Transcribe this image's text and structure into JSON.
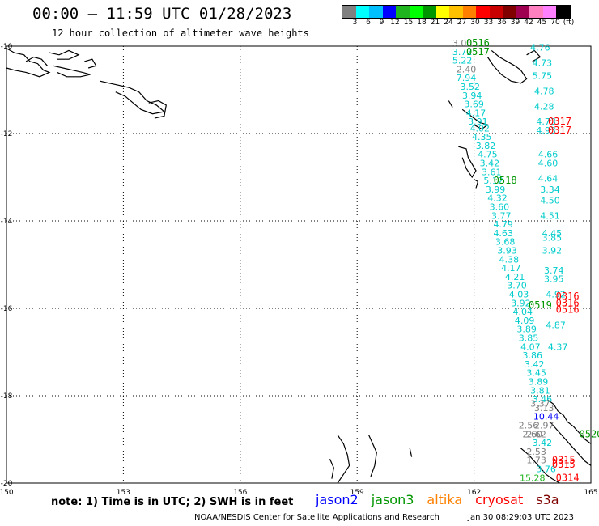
{
  "title": "00:00 – 11:59 UTC 01/28/2023",
  "subtitle": "12 hour collection of altimeter wave heights",
  "colorbar": {
    "colors": [
      "#808080",
      "#00ffff",
      "#00bfff",
      "#0000ff",
      "#1fb51f",
      "#00ff00",
      "#009600",
      "#ffff00",
      "#ffc000",
      "#ff8000",
      "#ff0000",
      "#c80000",
      "#800000",
      "#a00050",
      "#ff80c0",
      "#ff80ff",
      "#000000"
    ],
    "labels": [
      "3",
      "6",
      "9",
      "12",
      "15",
      "18",
      "21",
      "24",
      "27",
      "30",
      "33",
      "36",
      "39",
      "42",
      "45",
      "70",
      "(ft)"
    ]
  },
  "axes": {
    "lon_ticks": [
      "150",
      "153",
      "156",
      "159",
      "162",
      "165"
    ],
    "lat_ticks": [
      "-10",
      "-12",
      "-14",
      "-16",
      "-18",
      "-20"
    ]
  },
  "map_data": {
    "lon_range": [
      150,
      165
    ],
    "lat_range": [
      -20,
      -10
    ],
    "pass_labels": [
      {
        "text": "0516",
        "lon": 162.1,
        "lat": -10.0,
        "color": "#009600"
      },
      {
        "text": "0517",
        "lon": 162.1,
        "lat": -10.2,
        "color": "#009600"
      },
      {
        "text": "0317",
        "lon": 164.2,
        "lat": -11.8,
        "color": "#ff0000"
      },
      {
        "text": "0317",
        "lon": 164.2,
        "lat": -12.0,
        "color": "#ff0000"
      },
      {
        "text": "0518",
        "lon": 162.8,
        "lat": -13.15,
        "color": "#009600"
      },
      {
        "text": "0316",
        "lon": 164.4,
        "lat": -15.8,
        "color": "#ff0000"
      },
      {
        "text": "0316",
        "lon": 164.4,
        "lat": -15.95,
        "color": "#ff0000"
      },
      {
        "text": "0516",
        "lon": 164.4,
        "lat": -16.1,
        "color": "#ff0000"
      },
      {
        "text": "0519",
        "lon": 163.7,
        "lat": -16.0,
        "color": "#009600"
      },
      {
        "text": "0520",
        "lon": 165.0,
        "lat": -18.95,
        "color": "#009600"
      },
      {
        "text": "0315",
        "lon": 164.3,
        "lat": -19.55,
        "color": "#ff0000"
      },
      {
        "text": "0315",
        "lon": 164.3,
        "lat": -19.65,
        "color": "#ff0000"
      },
      {
        "text": "0314",
        "lon": 164.4,
        "lat": -19.95,
        "color": "#ff0000"
      }
    ],
    "wave_heights": [
      {
        "v": "3.00",
        "lon": 161.7,
        "lat": -10.0,
        "c": "#808080"
      },
      {
        "v": "3.72",
        "lon": 161.7,
        "lat": -10.2,
        "c": "#00cccc"
      },
      {
        "v": "5.22",
        "lon": 161.7,
        "lat": -10.4,
        "c": "#00cccc"
      },
      {
        "v": "2.40",
        "lon": 161.8,
        "lat": -10.6,
        "c": "#808080"
      },
      {
        "v": "7.94",
        "lon": 161.8,
        "lat": -10.8,
        "c": "#00cccc"
      },
      {
        "v": "3.52",
        "lon": 161.9,
        "lat": -11.0,
        "c": "#00cccc"
      },
      {
        "v": "3.94",
        "lon": 161.95,
        "lat": -11.2,
        "c": "#00cccc"
      },
      {
        "v": "3.69",
        "lon": 162.0,
        "lat": -11.4,
        "c": "#00cccc"
      },
      {
        "v": "4.17",
        "lon": 162.05,
        "lat": -11.6,
        "c": "#00cccc"
      },
      {
        "v": "3.91",
        "lon": 162.1,
        "lat": -11.8,
        "c": "#00cccc"
      },
      {
        "v": "4.02",
        "lon": 162.15,
        "lat": -11.95,
        "c": "#00cccc"
      },
      {
        "v": "4.35",
        "lon": 162.2,
        "lat": -12.15,
        "c": "#00cccc"
      },
      {
        "v": "3.82",
        "lon": 162.3,
        "lat": -12.35,
        "c": "#00cccc"
      },
      {
        "v": "4.75",
        "lon": 162.35,
        "lat": -12.55,
        "c": "#00cccc"
      },
      {
        "v": "3.42",
        "lon": 162.4,
        "lat": -12.75,
        "c": "#00cccc"
      },
      {
        "v": "3.61",
        "lon": 162.45,
        "lat": -12.95,
        "c": "#00cccc"
      },
      {
        "v": "5.12",
        "lon": 162.5,
        "lat": -13.15,
        "c": "#00cccc"
      },
      {
        "v": "3.99",
        "lon": 162.55,
        "lat": -13.35,
        "c": "#00cccc"
      },
      {
        "v": "4.32",
        "lon": 162.6,
        "lat": -13.55,
        "c": "#00cccc"
      },
      {
        "v": "3.60",
        "lon": 162.65,
        "lat": -13.75,
        "c": "#00cccc"
      },
      {
        "v": "3.77",
        "lon": 162.7,
        "lat": -13.95,
        "c": "#00cccc"
      },
      {
        "v": "4.79",
        "lon": 162.75,
        "lat": -14.15,
        "c": "#00cccc"
      },
      {
        "v": "4.63",
        "lon": 162.75,
        "lat": -14.35,
        "c": "#00cccc"
      },
      {
        "v": "3.68",
        "lon": 162.8,
        "lat": -14.55,
        "c": "#00cccc"
      },
      {
        "v": "3.93",
        "lon": 162.85,
        "lat": -14.75,
        "c": "#00cccc"
      },
      {
        "v": "4.38",
        "lon": 162.9,
        "lat": -14.95,
        "c": "#00cccc"
      },
      {
        "v": "4.17",
        "lon": 162.95,
        "lat": -15.15,
        "c": "#00cccc"
      },
      {
        "v": "4.21",
        "lon": 163.05,
        "lat": -15.35,
        "c": "#00cccc"
      },
      {
        "v": "3.70",
        "lon": 163.1,
        "lat": -15.55,
        "c": "#00cccc"
      },
      {
        "v": "4.03",
        "lon": 163.15,
        "lat": -15.75,
        "c": "#00cccc"
      },
      {
        "v": "3.92",
        "lon": 163.2,
        "lat": -15.95,
        "c": "#00cccc"
      },
      {
        "v": "4.04",
        "lon": 163.25,
        "lat": -16.15,
        "c": "#00cccc"
      },
      {
        "v": "4.09",
        "lon": 163.3,
        "lat": -16.35,
        "c": "#00cccc"
      },
      {
        "v": "3.89",
        "lon": 163.35,
        "lat": -16.55,
        "c": "#00cccc"
      },
      {
        "v": "3.85",
        "lon": 163.4,
        "lat": -16.75,
        "c": "#00cccc"
      },
      {
        "v": "4.07",
        "lon": 163.45,
        "lat": -16.95,
        "c": "#00cccc"
      },
      {
        "v": "3.86",
        "lon": 163.5,
        "lat": -17.15,
        "c": "#00cccc"
      },
      {
        "v": "3.42",
        "lon": 163.55,
        "lat": -17.35,
        "c": "#00cccc"
      },
      {
        "v": "3.45",
        "lon": 163.6,
        "lat": -17.55,
        "c": "#00cccc"
      },
      {
        "v": "3.89",
        "lon": 163.65,
        "lat": -17.75,
        "c": "#00cccc"
      },
      {
        "v": "3.81",
        "lon": 163.7,
        "lat": -17.95,
        "c": "#00cccc"
      },
      {
        "v": "3.46",
        "lon": 163.75,
        "lat": -18.15,
        "c": "#00cccc"
      },
      {
        "v": "3.37",
        "lon": 163.7,
        "lat": -18.25,
        "c": "#808080"
      },
      {
        "v": "3.13",
        "lon": 163.8,
        "lat": -18.35,
        "c": "#808080"
      },
      {
        "v": "10.44",
        "lon": 163.85,
        "lat": -18.55,
        "c": "#0000ff"
      },
      {
        "v": "2.56",
        "lon": 163.4,
        "lat": -18.75,
        "c": "#808080"
      },
      {
        "v": "2.97",
        "lon": 163.8,
        "lat": -18.75,
        "c": "#808080"
      },
      {
        "v": "2.62",
        "lon": 163.6,
        "lat": -18.95,
        "c": "#808080"
      },
      {
        "v": "2.60",
        "lon": 163.5,
        "lat": -18.95,
        "c": "#808080"
      },
      {
        "v": "3.42",
        "lon": 163.75,
        "lat": -19.15,
        "c": "#00cccc"
      },
      {
        "v": "2.53",
        "lon": 163.6,
        "lat": -19.35,
        "c": "#808080"
      },
      {
        "v": "1.73",
        "lon": 163.6,
        "lat": -19.55,
        "c": "#808080"
      },
      {
        "v": "3.76",
        "lon": 163.85,
        "lat": -19.75,
        "c": "#00cccc"
      },
      {
        "v": "15.28",
        "lon": 163.5,
        "lat": -19.95,
        "c": "#1fb51f"
      },
      {
        "v": "4.76",
        "lon": 163.7,
        "lat": -10.1,
        "c": "#00cccc"
      },
      {
        "v": "4.73",
        "lon": 163.75,
        "lat": -10.45,
        "c": "#00cccc"
      },
      {
        "v": "5.75",
        "lon": 163.75,
        "lat": -10.75,
        "c": "#00cccc"
      },
      {
        "v": "4.78",
        "lon": 163.8,
        "lat": -11.1,
        "c": "#00cccc"
      },
      {
        "v": "4.28",
        "lon": 163.8,
        "lat": -11.45,
        "c": "#00cccc"
      },
      {
        "v": "4.73",
        "lon": 163.85,
        "lat": -11.8,
        "c": "#00cccc"
      },
      {
        "v": "4.93",
        "lon": 163.85,
        "lat": -12.0,
        "c": "#00cccc"
      },
      {
        "v": "4.66",
        "lon": 163.9,
        "lat": -12.55,
        "c": "#00cccc"
      },
      {
        "v": "4.60",
        "lon": 163.9,
        "lat": -12.75,
        "c": "#00cccc"
      },
      {
        "v": "4.64",
        "lon": 163.9,
        "lat": -13.1,
        "c": "#00cccc"
      },
      {
        "v": "3.34",
        "lon": 163.95,
        "lat": -13.35,
        "c": "#00cccc"
      },
      {
        "v": "4.50",
        "lon": 163.95,
        "lat": -13.6,
        "c": "#00cccc"
      },
      {
        "v": "4.51",
        "lon": 163.95,
        "lat": -13.95,
        "c": "#00cccc"
      },
      {
        "v": "4.45",
        "lon": 164.0,
        "lat": -14.35,
        "c": "#00cccc"
      },
      {
        "v": "3.85",
        "lon": 164.0,
        "lat": -14.45,
        "c": "#00cccc"
      },
      {
        "v": "3.92",
        "lon": 164.0,
        "lat": -14.75,
        "c": "#00cccc"
      },
      {
        "v": "3.74",
        "lon": 164.05,
        "lat": -15.2,
        "c": "#00cccc"
      },
      {
        "v": "3.95",
        "lon": 164.05,
        "lat": -15.4,
        "c": "#00cccc"
      },
      {
        "v": "4.92",
        "lon": 164.1,
        "lat": -15.75,
        "c": "#00cccc"
      },
      {
        "v": "4.87",
        "lon": 164.1,
        "lat": -16.45,
        "c": "#00cccc"
      },
      {
        "v": "4.37",
        "lon": 164.15,
        "lat": -16.95,
        "c": "#00cccc"
      }
    ],
    "coastlines": [
      [
        [
          150.0,
          -10.05
        ],
        [
          150.2,
          -10.15
        ],
        [
          150.45,
          -10.2
        ],
        [
          150.6,
          -10.35
        ],
        [
          150.8,
          -10.4
        ],
        [
          150.95,
          -10.55
        ],
        [
          151.1,
          -10.6
        ],
        [
          150.85,
          -10.7
        ],
        [
          150.5,
          -10.6
        ],
        [
          150.2,
          -10.55
        ],
        [
          150.0,
          -10.5
        ]
      ],
      [
        [
          150.5,
          -10.35
        ],
        [
          150.7,
          -10.25
        ],
        [
          150.9,
          -10.3
        ],
        [
          151.05,
          -10.45
        ]
      ],
      [
        [
          151.2,
          -10.45
        ],
        [
          151.45,
          -10.5
        ],
        [
          151.7,
          -10.55
        ],
        [
          151.95,
          -10.6
        ],
        [
          152.15,
          -10.65
        ],
        [
          151.9,
          -10.7
        ],
        [
          151.55,
          -10.7
        ],
        [
          151.3,
          -10.6
        ]
      ],
      [
        [
          151.1,
          -10.15
        ],
        [
          151.35,
          -10.2
        ],
        [
          151.6,
          -10.1
        ],
        [
          151.85,
          -10.2
        ],
        [
          151.6,
          -10.3
        ],
        [
          151.3,
          -10.3
        ]
      ],
      [
        [
          152.4,
          -10.8
        ],
        [
          152.65,
          -10.85
        ],
        [
          152.9,
          -10.9
        ],
        [
          153.15,
          -10.95
        ],
        [
          153.4,
          -11.05
        ],
        [
          153.6,
          -11.25
        ],
        [
          153.85,
          -11.35
        ],
        [
          154.05,
          -11.5
        ],
        [
          153.75,
          -11.55
        ],
        [
          153.45,
          -11.45
        ],
        [
          153.25,
          -11.3
        ],
        [
          153.05,
          -11.15
        ],
        [
          152.8,
          -11.05
        ]
      ],
      [
        [
          153.65,
          -11.3
        ],
        [
          153.9,
          -11.25
        ],
        [
          154.1,
          -11.35
        ],
        [
          154.05,
          -11.6
        ],
        [
          153.8,
          -11.65
        ]
      ],
      [
        [
          152.0,
          -10.35
        ],
        [
          152.2,
          -10.3
        ],
        [
          152.3,
          -10.45
        ],
        [
          152.1,
          -10.5
        ]
      ],
      [
        [
          162.45,
          -10.1
        ],
        [
          162.65,
          -10.25
        ],
        [
          162.85,
          -10.35
        ],
        [
          163.05,
          -10.45
        ],
        [
          163.2,
          -10.55
        ],
        [
          163.35,
          -10.75
        ],
        [
          163.2,
          -10.85
        ],
        [
          162.95,
          -10.8
        ],
        [
          162.7,
          -10.65
        ],
        [
          162.5,
          -10.45
        ],
        [
          162.35,
          -10.25
        ]
      ],
      [
        [
          163.35,
          -10.2
        ],
        [
          163.55,
          -10.1
        ],
        [
          163.7,
          -10.25
        ],
        [
          163.5,
          -10.35
        ]
      ],
      [
        [
          161.7,
          -11.45
        ],
        [
          161.85,
          -11.55
        ],
        [
          162.0,
          -11.65
        ],
        [
          162.15,
          -11.75
        ],
        [
          162.35,
          -11.8
        ],
        [
          162.2,
          -11.9
        ],
        [
          162.0,
          -11.8
        ]
      ],
      [
        [
          161.35,
          -11.25
        ],
        [
          161.45,
          -11.4
        ]
      ],
      [
        [
          161.6,
          -12.3
        ],
        [
          161.8,
          -12.35
        ],
        [
          161.85,
          -12.55
        ],
        [
          161.95,
          -12.7
        ],
        [
          162.05,
          -12.85
        ],
        [
          161.95,
          -13.0
        ],
        [
          161.8,
          -12.8
        ],
        [
          161.7,
          -12.55
        ]
      ],
      [
        [
          162.0,
          -13.05
        ],
        [
          162.1,
          -13.1
        ],
        [
          162.05,
          -13.25
        ]
      ],
      [
        [
          163.9,
          -18.1
        ],
        [
          164.05,
          -18.2
        ],
        [
          164.15,
          -18.35
        ],
        [
          164.3,
          -18.45
        ],
        [
          164.4,
          -18.6
        ],
        [
          164.55,
          -18.7
        ],
        [
          164.7,
          -18.85
        ],
        [
          164.85,
          -19.0
        ],
        [
          165.0,
          -19.1
        ]
      ],
      [
        [
          163.95,
          -18.6
        ],
        [
          164.1,
          -18.75
        ],
        [
          164.25,
          -18.9
        ],
        [
          164.4,
          -19.05
        ],
        [
          164.55,
          -19.2
        ],
        [
          164.7,
          -19.35
        ],
        [
          164.85,
          -19.5
        ],
        [
          165.0,
          -19.6
        ]
      ],
      [
        [
          163.2,
          -19.2
        ],
        [
          163.4,
          -19.35
        ],
        [
          163.55,
          -19.5
        ],
        [
          163.7,
          -19.65
        ],
        [
          163.85,
          -19.8
        ],
        [
          164.0,
          -19.9
        ],
        [
          164.2,
          -20.0
        ]
      ],
      [
        [
          158.5,
          -18.9
        ],
        [
          158.65,
          -19.1
        ],
        [
          158.75,
          -19.35
        ],
        [
          158.8,
          -19.6
        ],
        [
          158.65,
          -19.8
        ],
        [
          158.5,
          -20.0
        ]
      ],
      [
        [
          158.3,
          -19.45
        ],
        [
          158.4,
          -19.65
        ],
        [
          158.35,
          -19.9
        ]
      ],
      [
        [
          159.3,
          -18.9
        ],
        [
          159.4,
          -19.1
        ],
        [
          159.5,
          -19.3
        ],
        [
          159.45,
          -19.6
        ],
        [
          159.35,
          -19.85
        ]
      ],
      [
        [
          160.35,
          -19.2
        ],
        [
          160.4,
          -19.4
        ]
      ]
    ]
  },
  "note": "note: 1) Time is in UTC; 2) SWH is in feet",
  "legend": [
    {
      "name": "jason2",
      "color": "#0000ff"
    },
    {
      "name": "jason3",
      "color": "#009600"
    },
    {
      "name": "altika",
      "color": "#ff8000"
    },
    {
      "name": "cryosat",
      "color": "#ff0000"
    },
    {
      "name": "s3a",
      "color": "#800000"
    }
  ],
  "credit": "NOAA/NESDIS Center for Satellite Applications and Research",
  "timestamp": "Jan 30 08:29:03 UTC 2023"
}
